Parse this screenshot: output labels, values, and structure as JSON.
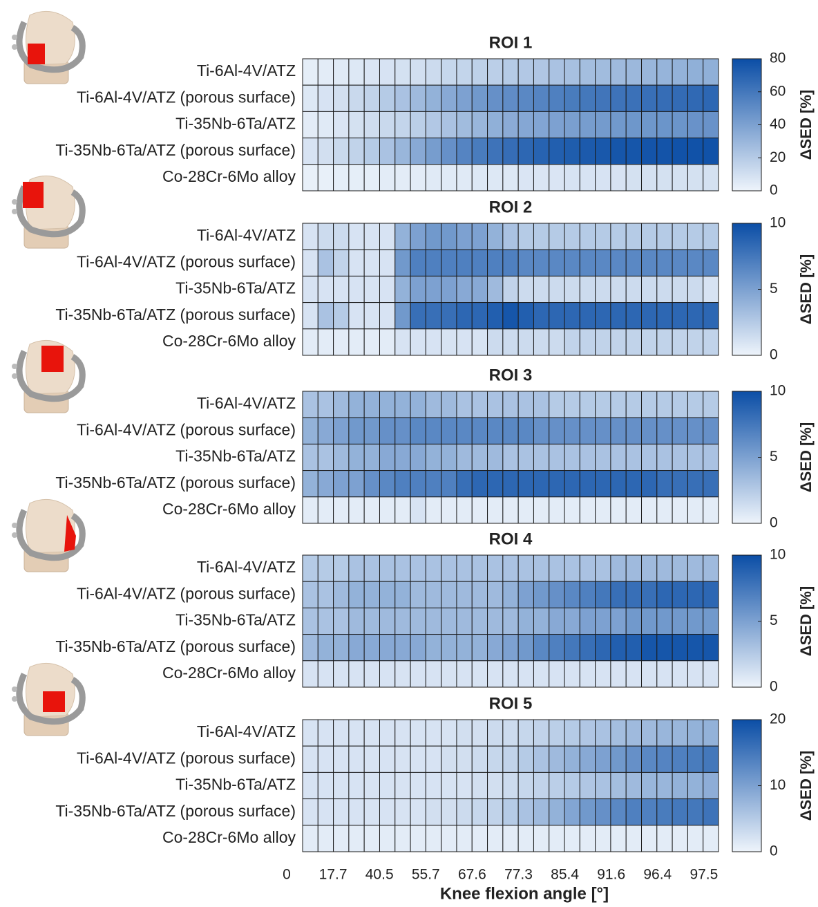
{
  "chart_data": [
    {
      "type": "heatmap",
      "title": "ROI 1",
      "colorbar_label": "ΔSED [%]",
      "clim": [
        0,
        80
      ],
      "cticks": [
        0,
        20,
        40,
        60,
        80
      ],
      "cmap": [
        "#eef4fb",
        "#0b4ea6"
      ],
      "series": [
        {
          "name": "Ti-6Al-4V/ATZ",
          "values": [
            3,
            4,
            5,
            6,
            7,
            8,
            9,
            10,
            12,
            14,
            15,
            17,
            18,
            20,
            21,
            22,
            24,
            25,
            26,
            27,
            28,
            29,
            30,
            31,
            32,
            33,
            33
          ]
        },
        {
          "name": "Ti-6Al-4V/ATZ (porous surface)",
          "values": [
            6,
            8,
            10,
            13,
            16,
            20,
            24,
            28,
            32,
            36,
            40,
            44,
            48,
            50,
            52,
            54,
            56,
            58,
            60,
            61,
            62,
            63,
            64,
            65,
            66,
            67,
            68
          ]
        },
        {
          "name": "Ti-35Nb-6Ta/ATZ",
          "values": [
            4,
            5,
            7,
            9,
            11,
            13,
            15,
            18,
            21,
            24,
            27,
            30,
            33,
            35,
            37,
            38,
            40,
            41,
            42,
            43,
            44,
            45,
            45,
            46,
            46,
            47,
            47
          ]
        },
        {
          "name": "Ti-35Nb-6Ta/ATZ (porous surface)",
          "values": [
            8,
            10,
            13,
            16,
            20,
            24,
            30,
            36,
            42,
            48,
            54,
            58,
            62,
            65,
            68,
            70,
            72,
            73,
            74,
            75,
            76,
            76,
            77,
            77,
            78,
            78,
            78
          ]
        },
        {
          "name": "Co-28Cr-6Mo alloy",
          "values": [
            2,
            2,
            3,
            3,
            3,
            4,
            4,
            4,
            5,
            5,
            5,
            6,
            6,
            6,
            7,
            7,
            7,
            8,
            8,
            8,
            8,
            9,
            9,
            9,
            9,
            9,
            9
          ]
        }
      ]
    },
    {
      "type": "heatmap",
      "title": "ROI 2",
      "colorbar_label": "ΔSED [%]",
      "clim": [
        0,
        10
      ],
      "cticks": [
        0,
        5,
        10
      ],
      "cmap": [
        "#eef4fb",
        "#0b4ea6"
      ],
      "series": [
        {
          "name": "Ti-6Al-4V/ATZ",
          "values": [
            1,
            1.5,
            1.5,
            1,
            1,
            1,
            4,
            5,
            5.5,
            5.5,
            5,
            5,
            4,
            3,
            2.5,
            2.5,
            2.5,
            2.5,
            2.5,
            2.5,
            2.5,
            2.5,
            2.5,
            2.5,
            2.5,
            2.5,
            2.5
          ]
        },
        {
          "name": "Ti-6Al-4V/ATZ (porous surface)",
          "values": [
            1,
            3,
            2,
            1,
            1,
            1,
            5.5,
            7,
            7,
            7,
            7,
            7,
            7,
            7,
            6.5,
            6.5,
            6.5,
            6.5,
            6.5,
            6.5,
            6.5,
            6.5,
            6.5,
            6.5,
            6.5,
            6.5,
            6.5
          ]
        },
        {
          "name": "Ti-35Nb-6Ta/ATZ",
          "values": [
            1,
            1,
            1,
            1,
            1,
            1,
            4,
            5,
            5,
            5,
            4.5,
            4.5,
            3.5,
            2,
            1.5,
            1.5,
            1.5,
            1.5,
            1.5,
            1.5,
            1.5,
            1.5,
            1.5,
            1.5,
            1.5,
            1.5,
            1
          ]
        },
        {
          "name": "Ti-35Nb-6Ta/ATZ (porous surface)",
          "values": [
            1,
            3,
            2.5,
            1,
            1,
            1,
            5.5,
            8,
            8,
            8,
            8.5,
            8.5,
            9,
            9.5,
            9,
            8.5,
            8.5,
            8.5,
            8.5,
            8.5,
            8.5,
            8.5,
            8.5,
            8.5,
            8.5,
            8.5,
            8.5
          ]
        },
        {
          "name": "Co-28Cr-6Mo alloy",
          "values": [
            0.5,
            0.5,
            0.5,
            0.5,
            0.5,
            0.5,
            1,
            1,
            1,
            1,
            1,
            1,
            1.5,
            1.5,
            1.5,
            1.5,
            1.5,
            2,
            2,
            2,
            2,
            2,
            2,
            2,
            2,
            2,
            2
          ]
        }
      ]
    },
    {
      "type": "heatmap",
      "title": "ROI 3",
      "colorbar_label": "ΔSED [%]",
      "clim": [
        0,
        10
      ],
      "cticks": [
        0,
        5,
        10
      ],
      "cmap": [
        "#eef4fb",
        "#0b4ea6"
      ],
      "series": [
        {
          "name": "Ti-6Al-4V/ATZ",
          "values": [
            3,
            3,
            3.5,
            4,
            4,
            4,
            4,
            4,
            3.5,
            3.5,
            3,
            3,
            3,
            3,
            3,
            3,
            2.5,
            2.5,
            2.5,
            2.5,
            2.5,
            2.5,
            2.5,
            2.5,
            2.5,
            2.5,
            2.5
          ]
        },
        {
          "name": "Ti-6Al-4V/ATZ (porous surface)",
          "values": [
            4,
            4.5,
            5,
            5.5,
            5.5,
            6,
            6,
            6.5,
            6.5,
            6.5,
            6.5,
            6.5,
            6.5,
            6.5,
            6.5,
            6,
            6,
            6,
            6,
            6,
            6,
            6,
            6,
            6,
            6,
            6,
            6
          ]
        },
        {
          "name": "Ti-35Nb-6Ta/ATZ",
          "values": [
            3,
            3,
            3.5,
            4,
            4,
            4.5,
            4.5,
            4.5,
            4,
            4,
            3.5,
            3.5,
            3.5,
            3,
            3,
            3,
            3,
            3,
            3,
            3,
            3,
            3,
            3,
            3,
            3,
            3,
            3
          ]
        },
        {
          "name": "Ti-35Nb-6Ta/ATZ (porous surface)",
          "values": [
            4,
            4.5,
            5,
            5,
            6,
            6.5,
            7,
            7,
            7,
            7,
            8,
            8.5,
            8.5,
            8.5,
            8.5,
            8.5,
            8.5,
            8.5,
            8.5,
            8.5,
            8.5,
            8.5,
            8.5,
            8,
            8,
            8,
            8
          ]
        },
        {
          "name": "Co-28Cr-6Mo alloy",
          "values": [
            0.5,
            0.5,
            0.5,
            0.5,
            0.5,
            0.5,
            0.5,
            1,
            0.5,
            0.5,
            0.5,
            0.5,
            0.5,
            0.5,
            0.5,
            0.5,
            0.5,
            0.5,
            0.5,
            0.5,
            0.5,
            0.5,
            0.5,
            0.5,
            0.5,
            0.5,
            0.5
          ]
        }
      ]
    },
    {
      "type": "heatmap",
      "title": "ROI 4",
      "colorbar_label": "ΔSED [%]",
      "clim": [
        0,
        10
      ],
      "cticks": [
        0,
        5,
        10
      ],
      "cmap": [
        "#eef4fb",
        "#0b4ea6"
      ],
      "series": [
        {
          "name": "Ti-6Al-4V/ATZ",
          "values": [
            2.5,
            2.5,
            2.5,
            3,
            3,
            3,
            3,
            3,
            3,
            3,
            3,
            3,
            3,
            3,
            3,
            3,
            3,
            3,
            3,
            3,
            3.5,
            3.5,
            3.5,
            3.5,
            3.5,
            3.5,
            3.5
          ]
        },
        {
          "name": "Ti-6Al-4V/ATZ (porous surface)",
          "values": [
            3,
            3,
            3.5,
            4,
            4,
            4,
            4,
            3.5,
            3.5,
            3.5,
            3.5,
            3.5,
            3.5,
            4,
            5,
            5.5,
            6,
            6.5,
            7,
            7.5,
            8,
            8,
            8,
            8.5,
            8.5,
            8.5,
            8.5
          ]
        },
        {
          "name": "Ti-35Nb-6Ta/ATZ",
          "values": [
            3,
            3,
            3,
            3.5,
            3.5,
            3.5,
            3.5,
            3.5,
            3.5,
            3.5,
            3.5,
            3.5,
            3.5,
            3.5,
            4,
            4,
            4.5,
            4.5,
            5,
            5,
            5,
            5.5,
            5.5,
            5.5,
            5.5,
            5.5,
            5.5
          ]
        },
        {
          "name": "Ti-35Nb-6Ta/ATZ (porous surface)",
          "values": [
            3.5,
            4,
            4,
            4.5,
            4.5,
            4.5,
            4.5,
            4.5,
            4,
            4,
            4,
            4,
            4.5,
            5,
            5.5,
            6.5,
            7,
            7.5,
            8,
            8.5,
            9,
            9,
            9.5,
            9.5,
            9.5,
            9.5,
            9.5
          ]
        },
        {
          "name": "Co-28Cr-6Mo alloy",
          "values": [
            1,
            1,
            1,
            1,
            1,
            1,
            1,
            1,
            1,
            1,
            1,
            1,
            1,
            1,
            1,
            1,
            1,
            1,
            1,
            1,
            1,
            1,
            1,
            1,
            1,
            1,
            1
          ]
        }
      ]
    },
    {
      "type": "heatmap",
      "title": "ROI 5",
      "colorbar_label": "ΔSED [%]",
      "clim": [
        0,
        20
      ],
      "cticks": [
        0,
        10,
        20
      ],
      "cmap": [
        "#eef4fb",
        "#0b4ea6"
      ],
      "xlabel": "Knee flexion angle [°]",
      "x_labels": [
        0,
        17.7,
        40.5,
        55.7,
        67.6,
        77.3,
        85.4,
        91.6,
        96.4,
        97.5
      ],
      "series": [
        {
          "name": "Ti-6Al-4V/ATZ",
          "values": [
            2,
            2,
            2,
            2,
            2,
            2,
            2,
            2,
            2,
            2,
            2.5,
            2.5,
            3,
            3,
            3.5,
            4,
            4.5,
            5,
            5.5,
            6,
            6.5,
            7,
            7,
            7.5,
            7.5,
            8,
            8
          ]
        },
        {
          "name": "Ti-6Al-4V/ATZ (porous surface)",
          "values": [
            2,
            2,
            2,
            2,
            2,
            2,
            2,
            2,
            2,
            2.5,
            2.5,
            3,
            3.5,
            4,
            5,
            6,
            7,
            8,
            9,
            10,
            11,
            12,
            13,
            13.5,
            14,
            14.5,
            15
          ]
        },
        {
          "name": "Ti-35Nb-6Ta/ATZ",
          "values": [
            2,
            2,
            2,
            2,
            2,
            2,
            2,
            2,
            2,
            2,
            2,
            2.5,
            2.5,
            3,
            3.5,
            4,
            4.5,
            5,
            5.5,
            6,
            6.5,
            7,
            7.5,
            7.5,
            8,
            8,
            8.5
          ]
        },
        {
          "name": "Ti-35Nb-6Ta/ATZ (porous surface)",
          "values": [
            2,
            2,
            2,
            2,
            2,
            2,
            2,
            2,
            2.5,
            2.5,
            3,
            3.5,
            4,
            5,
            6,
            7,
            8,
            9.5,
            11,
            12,
            13,
            14,
            14,
            14.5,
            15,
            15,
            15.5
          ]
        },
        {
          "name": "Co-28Cr-6Mo alloy",
          "values": [
            1,
            1,
            1,
            1,
            1,
            1,
            1,
            1,
            1,
            1,
            1,
            1,
            1,
            1,
            1,
            1,
            1,
            1,
            1,
            1,
            1,
            1,
            1,
            1,
            1,
            1,
            1
          ]
        }
      ]
    }
  ]
}
